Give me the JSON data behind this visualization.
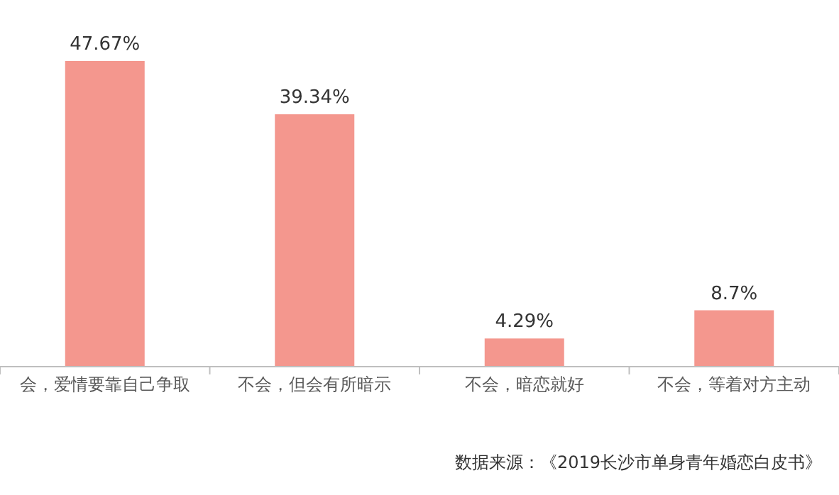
{
  "chart_data": {
    "type": "bar",
    "categories": [
      "会，爱情要靠自己争取",
      "不会，但会有所暗示",
      "不会，暗恋就好",
      "不会，等着对方主动"
    ],
    "values": [
      47.67,
      39.34,
      4.29,
      8.7
    ],
    "value_labels": [
      "47.67%",
      "39.34%",
      "4.29%",
      "8.7%"
    ],
    "color": "#f4978e",
    "annotations": [
      "数据来源：《2019长沙市单身青年婚恋白皮书》"
    ]
  }
}
